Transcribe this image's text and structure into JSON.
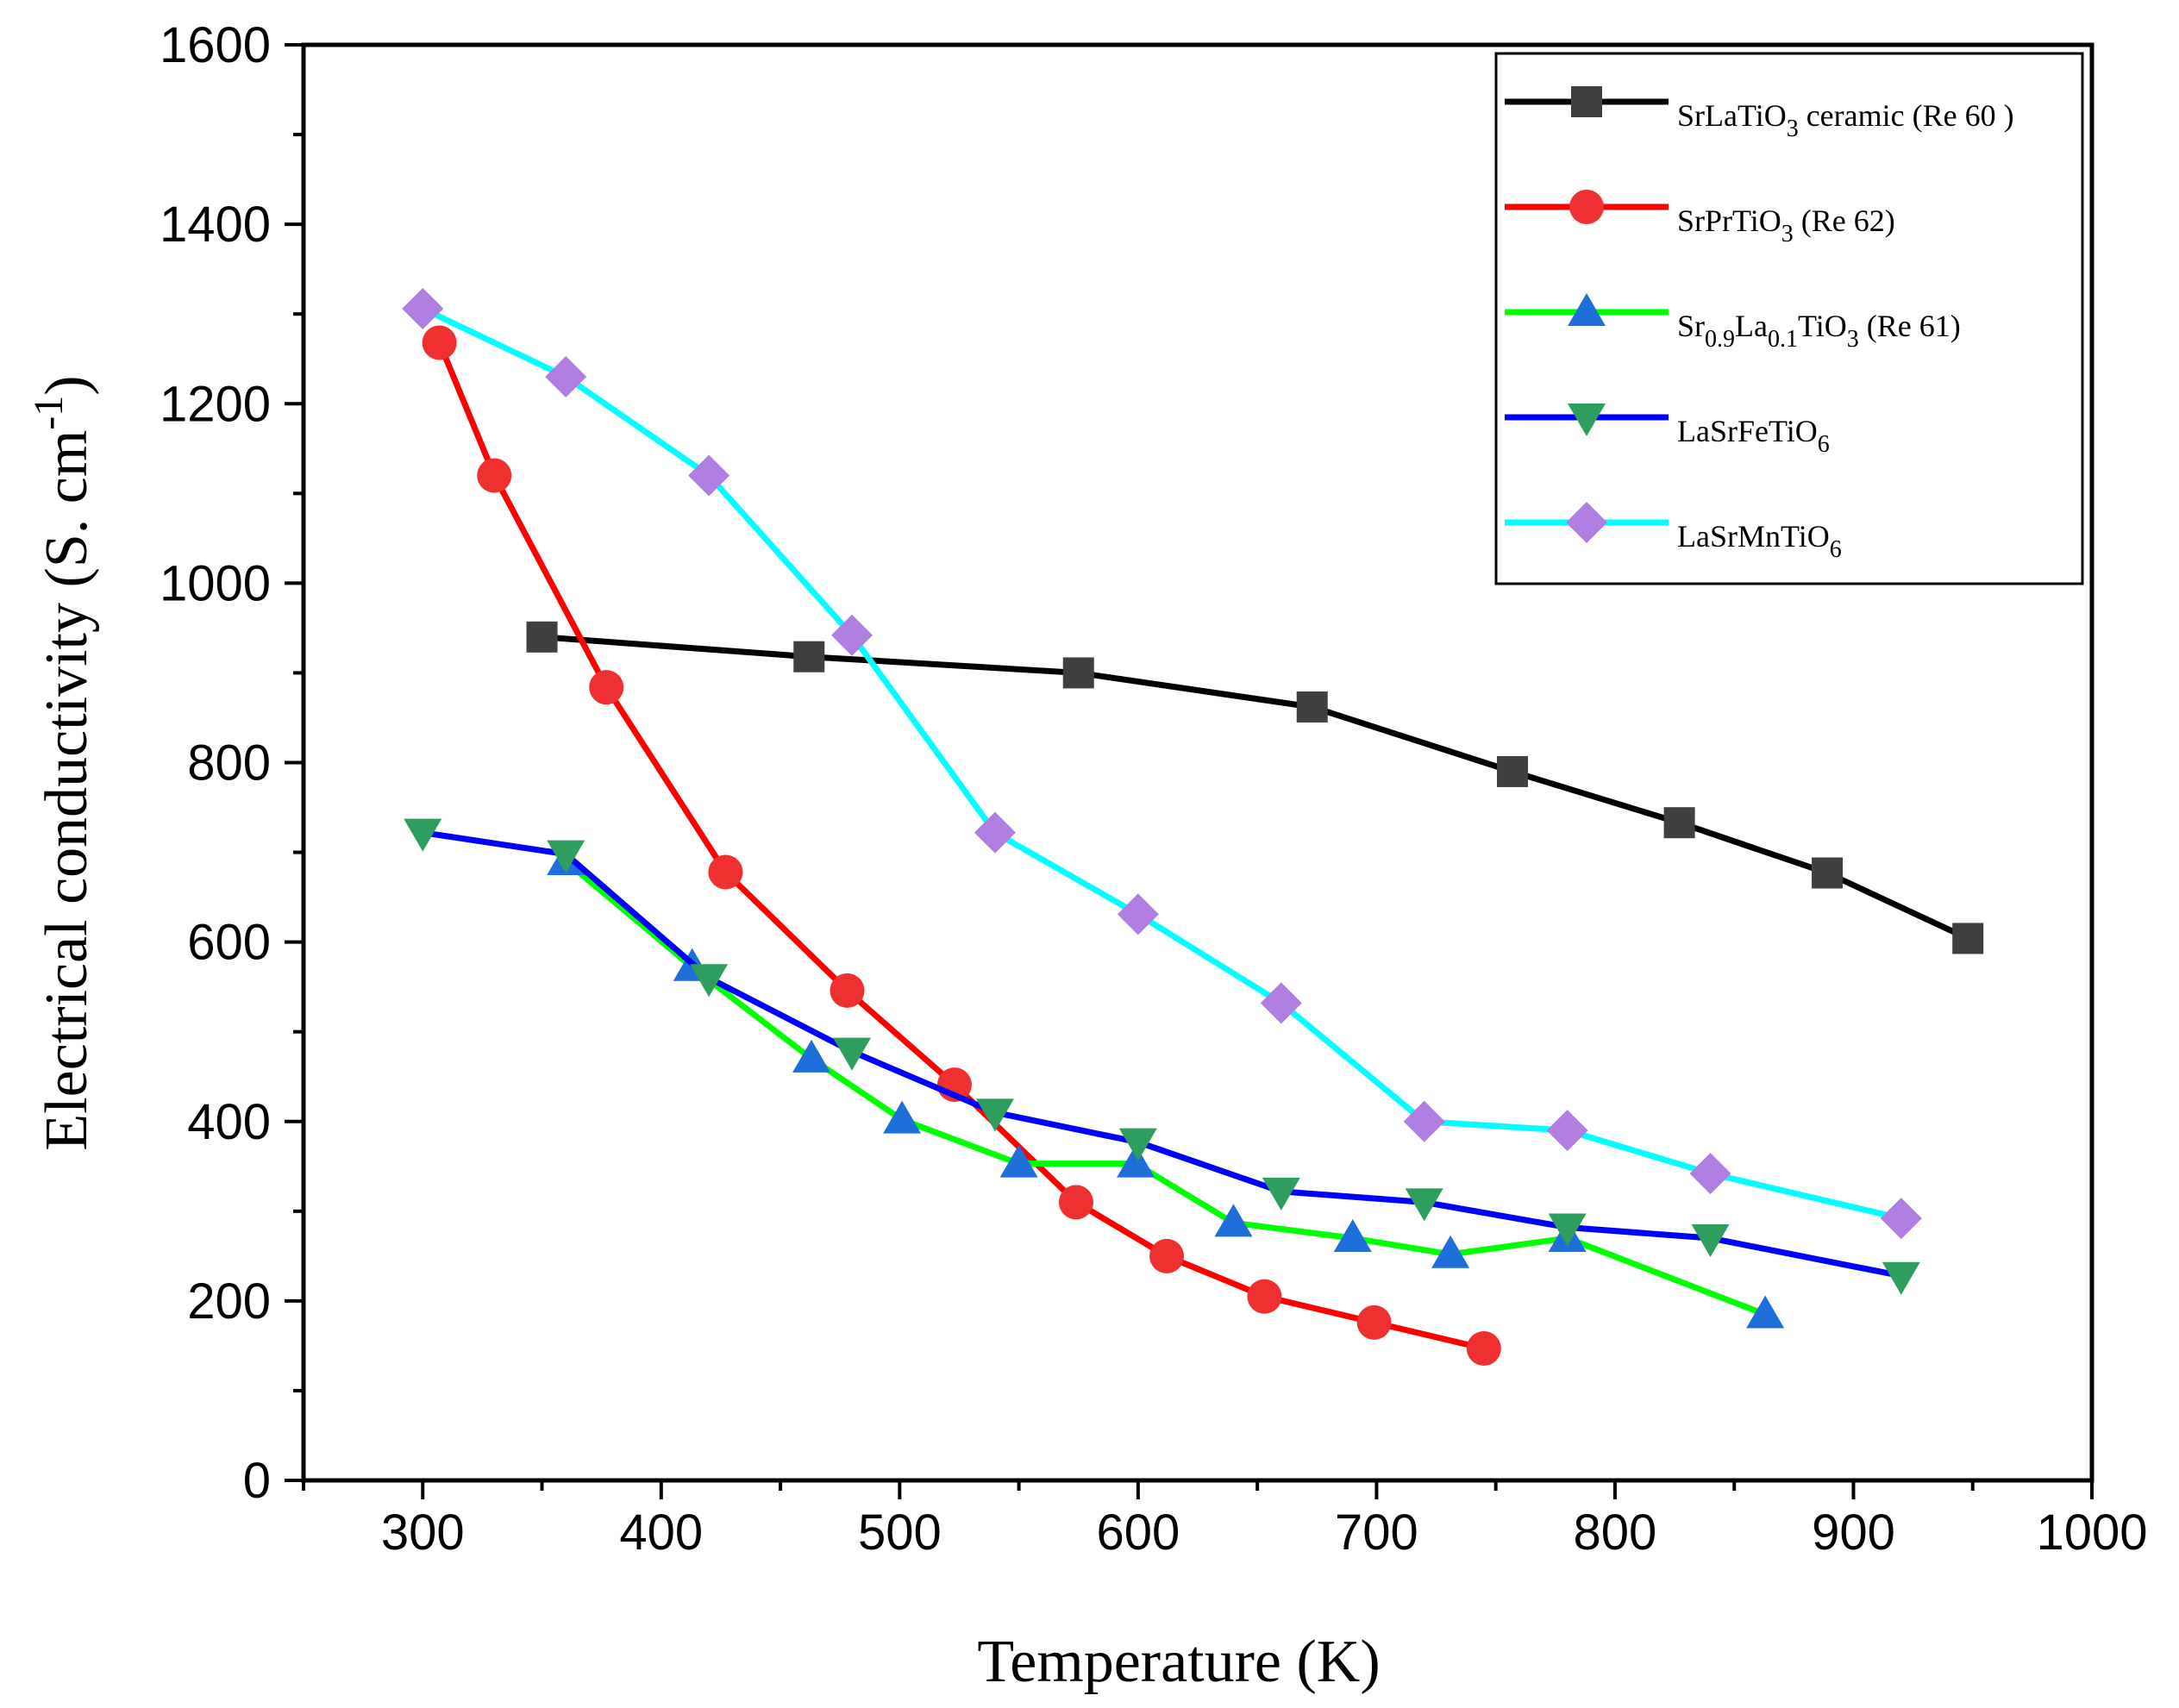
{
  "chart_data": {
    "type": "line",
    "title": "",
    "xlabel": "Temperature (K)",
    "ylabel": "Electrical conductivity (S. cm",
    "ylabel_sup": "-1",
    "ylabel_close": ")",
    "xlim": [
      250,
      1000
    ],
    "ylim": [
      0,
      1600
    ],
    "xticks": [
      "300",
      "400",
      "500",
      "600",
      "700",
      "800",
      "900",
      "1000"
    ],
    "yticks": [
      "0",
      "200",
      "400",
      "600",
      "800",
      "1000",
      "1200",
      "1400",
      "1600"
    ],
    "legend_position": "top-right",
    "series": [
      {
        "name": "SrLaTiO3 ceramic (Re 60 )",
        "legend_parts": [
          {
            "t": "SrLaTiO"
          },
          {
            "t": "3",
            "sub": true
          },
          {
            "t": " ceramic (Re 60 )"
          }
        ],
        "color": "#000000",
        "marker": "square",
        "marker_color": "#404040",
        "x": [
          350,
          462,
          575,
          673,
          757,
          827,
          889,
          948
        ],
        "y": [
          940,
          918,
          900,
          862,
          790,
          733,
          677,
          604
        ]
      },
      {
        "name": "SrPrTiO3 (Re 62)",
        "legend_parts": [
          {
            "t": "SrPrTiO"
          },
          {
            "t": "3",
            "sub": true
          },
          {
            "t": " (Re 62)"
          }
        ],
        "color": "#ff0000",
        "marker": "circle",
        "marker_color": "#ee3030",
        "x": [
          307,
          330,
          377,
          427,
          478,
          523,
          574,
          612,
          653,
          699,
          745
        ],
        "y": [
          1268,
          1120,
          884,
          678,
          546,
          441,
          310,
          250,
          205,
          176,
          147
        ]
      },
      {
        "name": "Sr0.9La0.1TiO3 (Re 61)",
        "legend_parts": [
          {
            "t": "Sr"
          },
          {
            "t": "0.9",
            "sub": true
          },
          {
            "t": "La"
          },
          {
            "t": "0.1",
            "sub": true
          },
          {
            "t": "TiO"
          },
          {
            "t": "3",
            "sub": true
          },
          {
            "t": " (Re 61)"
          }
        ],
        "color": "#00ff00",
        "marker": "triangle-up",
        "marker_color": "#1e6fd9",
        "x": [
          360,
          413,
          463,
          501,
          550,
          599,
          640,
          690,
          731,
          780,
          863
        ],
        "y": [
          690,
          572,
          470,
          402,
          353,
          353,
          287,
          270,
          252,
          270,
          185
        ]
      },
      {
        "name": "LaSrFeTiO6",
        "legend_parts": [
          {
            "t": "LaSrFeTiO"
          },
          {
            "t": "6",
            "sub": true
          }
        ],
        "color": "#0000ff",
        "marker": "triangle-down",
        "marker_color": "#2e9e5e",
        "x": [
          300,
          360,
          420,
          480,
          540,
          600,
          660,
          720,
          780,
          840,
          920
        ],
        "y": [
          722,
          698,
          560,
          478,
          410,
          377,
          322,
          310,
          282,
          270,
          228
        ]
      },
      {
        "name": "LaSrMnTiO6",
        "legend_parts": [
          {
            "t": "LaSrMnTiO"
          },
          {
            "t": "6",
            "sub": true
          }
        ],
        "color": "#00ffff",
        "marker": "diamond",
        "marker_color": "#b07ee0",
        "x": [
          300,
          360,
          420,
          480,
          540,
          600,
          660,
          720,
          780,
          840,
          920
        ],
        "y": [
          1306,
          1230,
          1120,
          942,
          722,
          631,
          532,
          400,
          390,
          342,
          292
        ]
      }
    ]
  }
}
